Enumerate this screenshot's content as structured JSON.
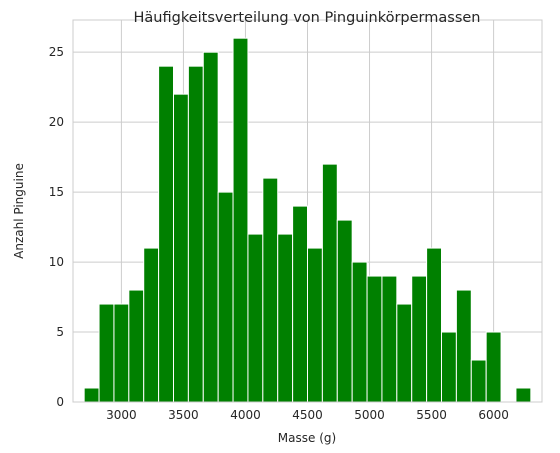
{
  "chart_data": {
    "type": "bar",
    "title": "Häufigkeitsverteilung von Pinguinkörpermassen",
    "xlabel": "Masse (g)",
    "ylabel": "Anzahl Pinguine",
    "xlim": [
      2610,
      6390
    ],
    "ylim": [
      0,
      27.3
    ],
    "xticks": [
      3000,
      3500,
      4000,
      4500,
      5000,
      5500,
      6000
    ],
    "yticks": [
      0,
      5,
      10,
      15,
      20,
      25
    ],
    "grid": true,
    "bar_color": "#008000",
    "bin_edges": [
      2700,
      2820,
      2940,
      3060,
      3180,
      3300,
      3420,
      3540,
      3660,
      3780,
      3900,
      4020,
      4140,
      4260,
      4380,
      4500,
      4620,
      4740,
      4860,
      4980,
      5100,
      5220,
      5340,
      5460,
      5580,
      5700,
      5820,
      5940,
      6060,
      6180,
      6300
    ],
    "values": [
      1,
      7,
      7,
      8,
      11,
      24,
      22,
      24,
      25,
      15,
      26,
      12,
      16,
      12,
      14,
      11,
      17,
      13,
      10,
      9,
      9,
      7,
      9,
      11,
      5,
      8,
      3,
      5,
      0,
      1
    ]
  }
}
